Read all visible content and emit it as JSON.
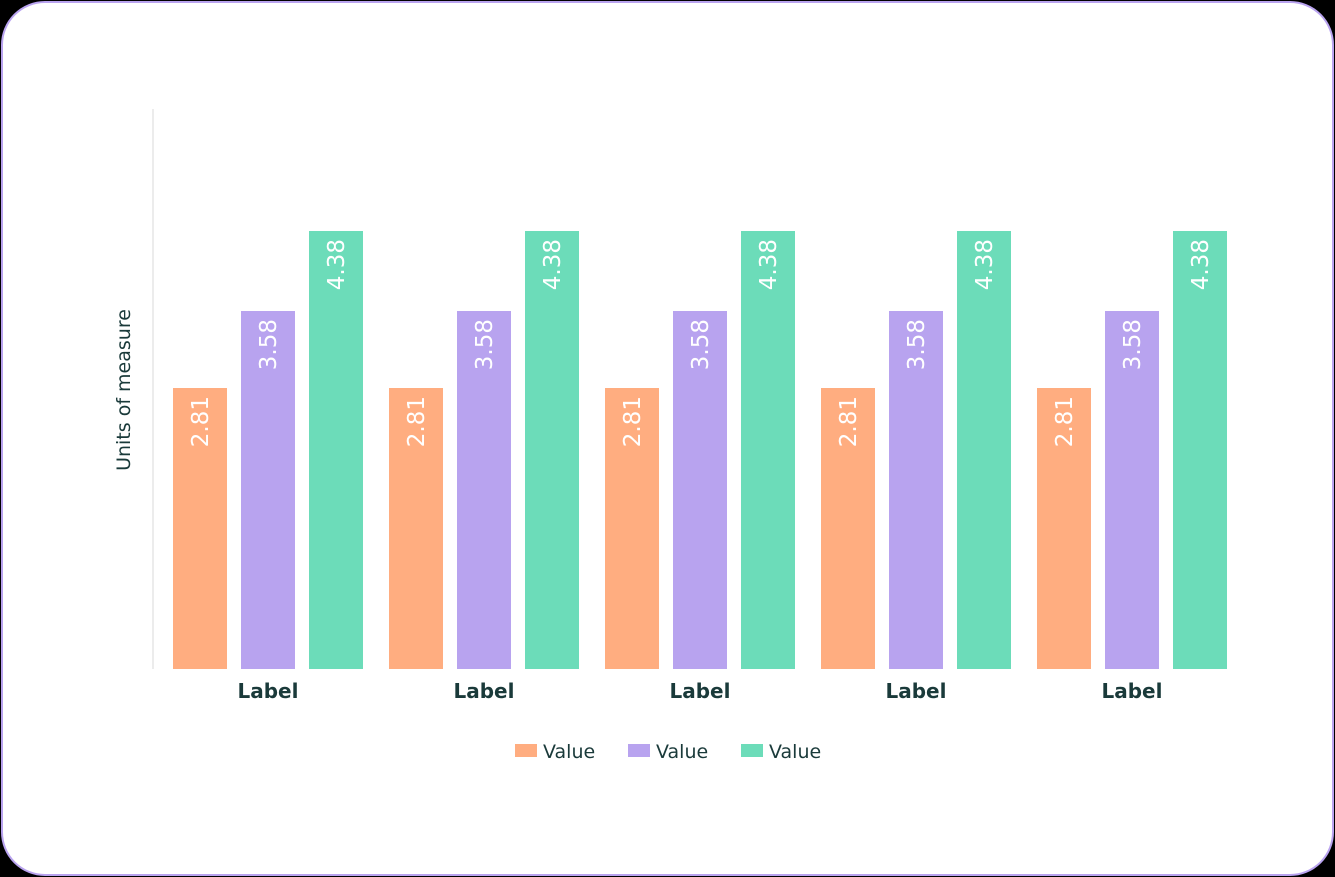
{
  "chart_data": {
    "type": "bar",
    "categories": [
      "Label",
      "Label",
      "Label",
      "Label",
      "Label"
    ],
    "series": [
      {
        "name": "Value",
        "color": "#ffad80",
        "values": [
          2.81,
          2.81,
          2.81,
          2.81,
          2.81
        ]
      },
      {
        "name": "Value",
        "color": "#b8a3ef",
        "values": [
          3.58,
          3.58,
          3.58,
          3.58,
          3.58
        ]
      },
      {
        "name": "Value",
        "color": "#6cdcb9",
        "values": [
          4.38,
          4.38,
          4.38,
          4.38,
          4.38
        ]
      }
    ],
    "title": "",
    "xlabel": "",
    "ylabel": "Units of measure",
    "ylim": [
      0,
      5.6
    ],
    "grid": false,
    "legend": "bottom-center"
  }
}
